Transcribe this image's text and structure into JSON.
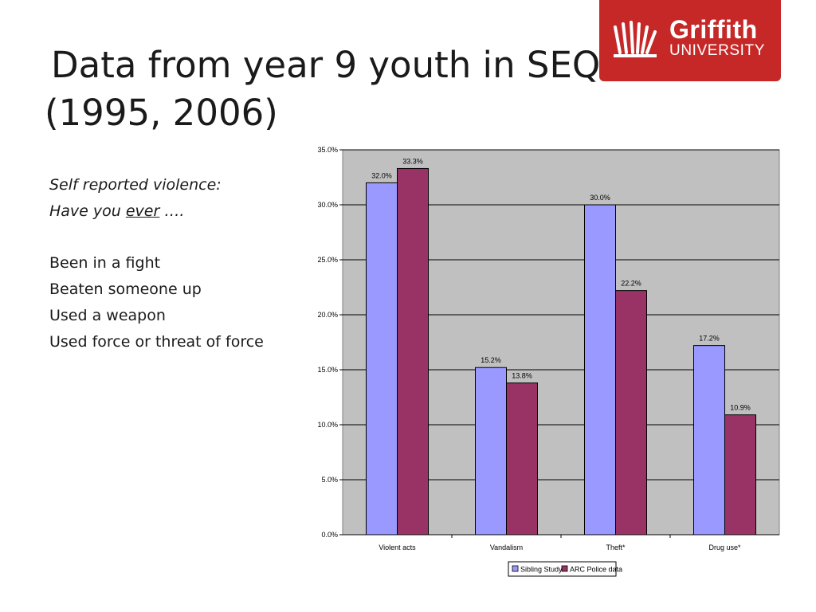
{
  "slide": {
    "title_line1": "Data from year 9 youth in SEQ",
    "title_line2": "(1995, 2006)"
  },
  "logo": {
    "name": "Griffith",
    "subtitle": "UNIVERSITY",
    "color": "#c62828"
  },
  "left_panel": {
    "heading": "Self reported violence:",
    "question_prefix": "Have you ",
    "question_emphasis": "ever",
    "question_suffix": " ….",
    "items": [
      "Been in a fight",
      "Beaten someone up",
      "Used a weapon",
      "Used force or threat of force"
    ]
  },
  "chart_data": {
    "type": "bar",
    "categories": [
      "Violent acts",
      "Vandalism",
      "Theft*",
      "Drug use*"
    ],
    "series": [
      {
        "name": "Sibling Study",
        "values": [
          32.0,
          15.2,
          30.0,
          17.2
        ],
        "labels": [
          "32.0%",
          "15.2%",
          "30.0%",
          "17.2%"
        ],
        "color": "#9999ff"
      },
      {
        "name": "ARC Police data",
        "values": [
          33.3,
          13.8,
          22.2,
          10.9
        ],
        "labels": [
          "33.3%",
          "13.8%",
          "22.2%",
          "10.9%"
        ],
        "color": "#993366"
      }
    ],
    "y_ticks": [
      0,
      5,
      10,
      15,
      20,
      25,
      30,
      35
    ],
    "y_tick_labels": [
      "0.0%",
      "5.0%",
      "10.0%",
      "15.0%",
      "20.0%",
      "25.0%",
      "30.0%",
      "35.0%"
    ],
    "ylim": [
      0,
      35
    ],
    "grid": true,
    "legend": "bottom",
    "plot_background": "#c0c0c0"
  }
}
